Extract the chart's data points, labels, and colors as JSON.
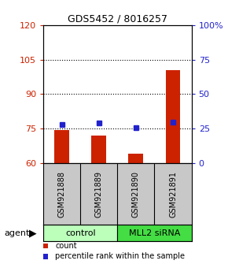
{
  "title": "GDS5452 / 8016257",
  "samples": [
    "GSM921888",
    "GSM921889",
    "GSM921890",
    "GSM921891"
  ],
  "bar_values": [
    74.5,
    72.0,
    64.0,
    100.5
  ],
  "percentile_values": [
    28.0,
    29.0,
    26.0,
    30.0
  ],
  "bar_color": "#cc2200",
  "square_color": "#2222cc",
  "ylim_left": [
    60,
    120
  ],
  "ylim_right": [
    0,
    100
  ],
  "yticks_left": [
    60,
    75,
    90,
    105,
    120
  ],
  "yticks_right": [
    0,
    25,
    50,
    75,
    100
  ],
  "ytick_labels_right": [
    "0",
    "25",
    "50",
    "75",
    "100%"
  ],
  "grid_values": [
    75,
    90,
    105
  ],
  "groups": [
    {
      "label": "control",
      "samples": [
        0,
        1
      ],
      "color": "#bbffbb"
    },
    {
      "label": "MLL2 siRNA",
      "samples": [
        2,
        3
      ],
      "color": "#44dd44"
    }
  ],
  "group_label": "agent",
  "legend": [
    {
      "color": "#cc2200",
      "label": "count"
    },
    {
      "color": "#2222cc",
      "label": "percentile rank within the sample"
    }
  ],
  "background_color": "#ffffff",
  "plot_bg_color": "#ffffff",
  "sample_area_color": "#c8c8c8"
}
